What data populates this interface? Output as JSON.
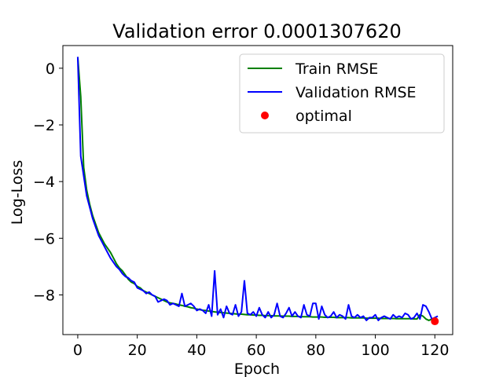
{
  "chart_data": {
    "type": "line",
    "title": "Validation error 0.0001307620",
    "xlabel": "Epoch",
    "ylabel": "Log-Loss",
    "xlim": [
      -5,
      126
    ],
    "ylim": [
      -9.4,
      0.8
    ],
    "xticks": [
      0,
      20,
      40,
      60,
      80,
      100,
      120
    ],
    "yticks": [
      0,
      -2,
      -4,
      -6,
      -8
    ],
    "ytick_labels": [
      "0",
      "−2",
      "−4",
      "−6",
      "−8"
    ],
    "grid": false,
    "legend_position": "top-right",
    "series": [
      {
        "name": "Train RMSE",
        "color": "#008000",
        "x": [
          0,
          1,
          2,
          3,
          4,
          5,
          6,
          7,
          8,
          9,
          10,
          11,
          12,
          13,
          14,
          15,
          16,
          17,
          18,
          19,
          20,
          21,
          22,
          23,
          24,
          25,
          26,
          27,
          28,
          29,
          30,
          31,
          32,
          33,
          34,
          35,
          36,
          37,
          38,
          39,
          40,
          41,
          42,
          43,
          44,
          45,
          46,
          47,
          48,
          49,
          50,
          51,
          52,
          53,
          54,
          55,
          56,
          57,
          58,
          59,
          60,
          61,
          62,
          63,
          64,
          65,
          66,
          67,
          68,
          69,
          70,
          71,
          72,
          73,
          74,
          75,
          76,
          77,
          78,
          79,
          80,
          81,
          82,
          83,
          84,
          85,
          86,
          87,
          88,
          89,
          90,
          91,
          92,
          93,
          94,
          95,
          96,
          97,
          98,
          99,
          100,
          101,
          102,
          103,
          104,
          105,
          106,
          107,
          108,
          109,
          110,
          111,
          112,
          113,
          114,
          115,
          116,
          117,
          118,
          119,
          120,
          121
        ],
        "values": [
          0.4,
          -1.0,
          -3.5,
          -4.3,
          -4.8,
          -5.2,
          -5.5,
          -5.8,
          -6.0,
          -6.2,
          -6.35,
          -6.5,
          -6.7,
          -6.9,
          -7.05,
          -7.15,
          -7.3,
          -7.45,
          -7.55,
          -7.6,
          -7.7,
          -7.75,
          -7.85,
          -7.9,
          -7.95,
          -8.0,
          -8.05,
          -8.1,
          -8.15,
          -8.2,
          -8.25,
          -8.28,
          -8.3,
          -8.32,
          -8.35,
          -8.37,
          -8.4,
          -8.42,
          -8.45,
          -8.47,
          -8.5,
          -8.52,
          -8.54,
          -8.55,
          -8.57,
          -8.58,
          -8.6,
          -8.61,
          -8.62,
          -8.63,
          -8.64,
          -8.65,
          -8.66,
          -8.67,
          -8.68,
          -8.68,
          -8.69,
          -8.7,
          -8.7,
          -8.71,
          -8.71,
          -8.72,
          -8.72,
          -8.73,
          -8.73,
          -8.73,
          -8.74,
          -8.74,
          -8.74,
          -8.75,
          -8.75,
          -8.75,
          -8.76,
          -8.76,
          -8.76,
          -8.77,
          -8.77,
          -8.77,
          -8.77,
          -8.78,
          -8.78,
          -8.78,
          -8.78,
          -8.79,
          -8.79,
          -8.79,
          -8.79,
          -8.8,
          -8.8,
          -8.8,
          -8.8,
          -8.8,
          -8.81,
          -8.81,
          -8.81,
          -8.81,
          -8.81,
          -8.82,
          -8.82,
          -8.82,
          -8.82,
          -8.82,
          -8.83,
          -8.83,
          -8.83,
          -8.83,
          -8.83,
          -8.84,
          -8.84,
          -8.84,
          -8.84,
          -8.84,
          -8.84,
          -8.85,
          -8.85,
          -8.7,
          -8.75,
          -8.85,
          -8.9,
          -8.85,
          -8.88,
          -8.85
        ]
      },
      {
        "name": "Validation RMSE",
        "color": "#0000ff",
        "x": [
          0,
          1,
          2,
          3,
          4,
          5,
          6,
          7,
          8,
          9,
          10,
          11,
          12,
          13,
          14,
          15,
          16,
          17,
          18,
          19,
          20,
          21,
          22,
          23,
          24,
          25,
          26,
          27,
          28,
          29,
          30,
          31,
          32,
          33,
          34,
          35,
          36,
          37,
          38,
          39,
          40,
          41,
          42,
          43,
          44,
          45,
          46,
          47,
          48,
          49,
          50,
          51,
          52,
          53,
          54,
          55,
          56,
          57,
          58,
          59,
          60,
          61,
          62,
          63,
          64,
          65,
          66,
          67,
          68,
          69,
          70,
          71,
          72,
          73,
          74,
          75,
          76,
          77,
          78,
          79,
          80,
          81,
          82,
          83,
          84,
          85,
          86,
          87,
          88,
          89,
          90,
          91,
          92,
          93,
          94,
          95,
          96,
          97,
          98,
          99,
          100,
          101,
          102,
          103,
          104,
          105,
          106,
          107,
          108,
          109,
          110,
          111,
          112,
          113,
          114,
          115,
          116,
          117,
          118,
          119,
          120,
          121
        ],
        "values": [
          0.4,
          -3.1,
          -3.8,
          -4.5,
          -4.9,
          -5.3,
          -5.6,
          -5.9,
          -6.1,
          -6.3,
          -6.5,
          -6.7,
          -6.85,
          -7.0,
          -7.1,
          -7.25,
          -7.35,
          -7.4,
          -7.5,
          -7.55,
          -7.75,
          -7.8,
          -7.85,
          -7.95,
          -7.9,
          -8.0,
          -8.05,
          -8.25,
          -8.2,
          -8.15,
          -8.2,
          -8.35,
          -8.3,
          -8.35,
          -8.4,
          -7.95,
          -8.4,
          -8.35,
          -8.3,
          -8.4,
          -8.55,
          -8.5,
          -8.55,
          -8.65,
          -8.35,
          -8.75,
          -7.15,
          -8.7,
          -8.5,
          -8.8,
          -8.4,
          -8.65,
          -8.7,
          -8.35,
          -8.75,
          -8.6,
          -7.5,
          -8.65,
          -8.7,
          -8.6,
          -8.75,
          -8.45,
          -8.7,
          -8.8,
          -8.6,
          -8.8,
          -8.7,
          -8.3,
          -8.75,
          -8.8,
          -8.65,
          -8.45,
          -8.75,
          -8.6,
          -8.75,
          -8.8,
          -8.35,
          -8.7,
          -8.75,
          -8.3,
          -8.3,
          -8.85,
          -8.4,
          -8.7,
          -8.8,
          -8.75,
          -8.6,
          -8.8,
          -8.7,
          -8.75,
          -8.85,
          -8.35,
          -8.75,
          -8.8,
          -8.7,
          -8.8,
          -8.75,
          -8.9,
          -8.8,
          -8.8,
          -8.7,
          -8.9,
          -8.8,
          -8.75,
          -8.8,
          -8.85,
          -8.7,
          -8.8,
          -8.75,
          -8.8,
          -8.65,
          -8.7,
          -8.85,
          -8.8,
          -8.65,
          -8.85,
          -8.35,
          -8.4,
          -8.6,
          -8.85,
          -8.8,
          -8.75
        ]
      }
    ],
    "markers": [
      {
        "name": "optimal",
        "color": "#ff0000",
        "x": 120,
        "y": -8.93
      }
    ]
  }
}
